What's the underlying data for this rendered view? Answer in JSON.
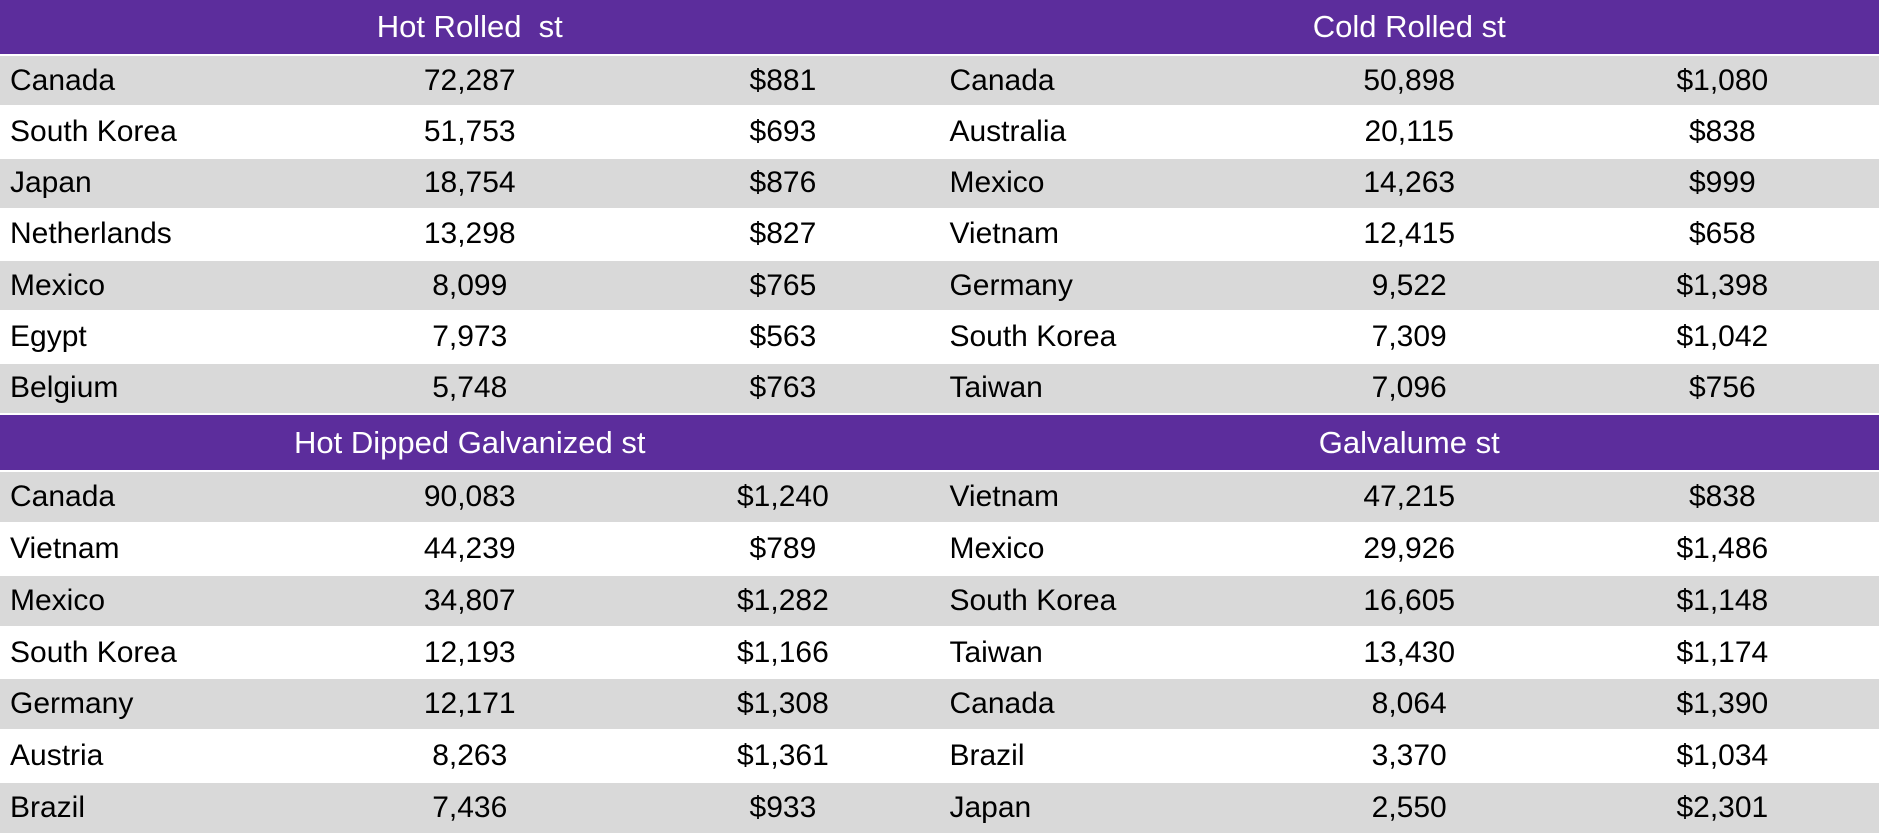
{
  "theme": {
    "header_bg": "#5C2D9C",
    "header_text": "#FFFFFF",
    "row_bg": "#FFFFFF",
    "row_alt_bg": "#D9D9D9",
    "text_color": "#000000"
  },
  "tables": [
    {
      "title": "Hot Rolled  st",
      "rows": [
        {
          "country": "Canada",
          "volume": "72,287",
          "price": "$881"
        },
        {
          "country": "South Korea",
          "volume": "51,753",
          "price": "$693"
        },
        {
          "country": "Japan",
          "volume": "18,754",
          "price": "$876"
        },
        {
          "country": "Netherlands",
          "volume": "13,298",
          "price": "$827"
        },
        {
          "country": "Mexico",
          "volume": "8,099",
          "price": "$765"
        },
        {
          "country": "Egypt",
          "volume": "7,973",
          "price": "$563"
        },
        {
          "country": "Belgium",
          "volume": "5,748",
          "price": "$763"
        }
      ]
    },
    {
      "title": "Cold Rolled st",
      "rows": [
        {
          "country": "Canada",
          "volume": "50,898",
          "price": "$1,080"
        },
        {
          "country": "Australia",
          "volume": "20,115",
          "price": "$838"
        },
        {
          "country": "Mexico",
          "volume": "14,263",
          "price": "$999"
        },
        {
          "country": "Vietnam",
          "volume": "12,415",
          "price": "$658"
        },
        {
          "country": "Germany",
          "volume": "9,522",
          "price": "$1,398"
        },
        {
          "country": "South Korea",
          "volume": "7,309",
          "price": "$1,042"
        },
        {
          "country": "Taiwan",
          "volume": "7,096",
          "price": "$756"
        }
      ]
    },
    {
      "title": "Hot Dipped Galvanized st",
      "rows": [
        {
          "country": "Canada",
          "volume": "90,083",
          "price": "$1,240"
        },
        {
          "country": "Vietnam",
          "volume": "44,239",
          "price": "$789"
        },
        {
          "country": "Mexico",
          "volume": "34,807",
          "price": "$1,282"
        },
        {
          "country": "South Korea",
          "volume": "12,193",
          "price": "$1,166"
        },
        {
          "country": "Germany",
          "volume": "12,171",
          "price": "$1,308"
        },
        {
          "country": "Austria",
          "volume": "8,263",
          "price": "$1,361"
        },
        {
          "country": "Brazil",
          "volume": "7,436",
          "price": "$933"
        }
      ]
    },
    {
      "title": "Galvalume st",
      "rows": [
        {
          "country": "Vietnam",
          "volume": "47,215",
          "price": "$838"
        },
        {
          "country": "Mexico",
          "volume": "29,926",
          "price": "$1,486"
        },
        {
          "country": "South Korea",
          "volume": "16,605",
          "price": "$1,148"
        },
        {
          "country": "Taiwan",
          "volume": "13,430",
          "price": "$1,174"
        },
        {
          "country": "Canada",
          "volume": "8,064",
          "price": "$1,390"
        },
        {
          "country": "Brazil",
          "volume": "3,370",
          "price": "$1,034"
        },
        {
          "country": "Japan",
          "volume": "2,550",
          "price": "$2,301"
        }
      ]
    }
  ]
}
